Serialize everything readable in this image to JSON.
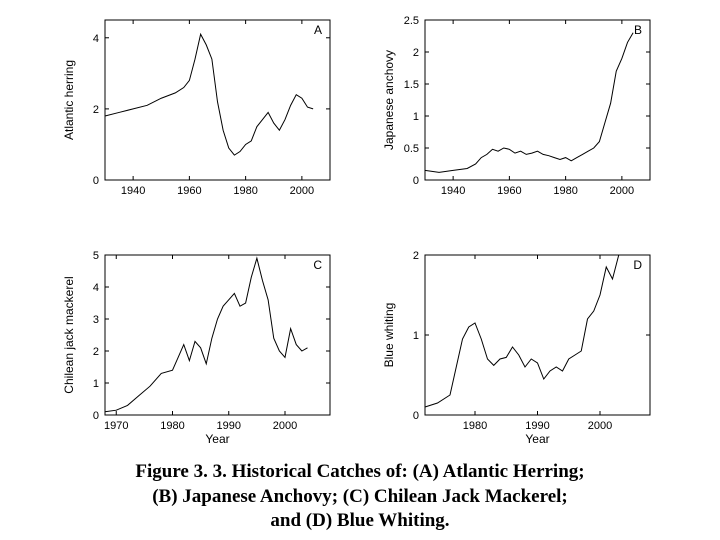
{
  "caption": {
    "line1": "Figure 3. 3. Historical Catches of:  (A) Atlantic Herring;",
    "line2": "(B) Japanese Anchovy; (C) Chilean Jack Mackerel;",
    "line3": "and (D) Blue Whiting."
  },
  "panels": {
    "A": {
      "type": "line",
      "letter": "A",
      "ylabel": "Atlantic herring",
      "xlabel": "",
      "xlim": [
        1930,
        2010
      ],
      "ylim": [
        0,
        4.5
      ],
      "xtick_labels": [
        "1940",
        "1960",
        "1980",
        "2000"
      ],
      "xtick_vals": [
        1940,
        1960,
        1980,
        2000
      ],
      "ytick_labels": [
        "0",
        "2",
        "4"
      ],
      "ytick_vals": [
        0,
        2,
        4
      ],
      "line_color": "#000000",
      "line_width": 1,
      "background_color": "#ffffff",
      "axis_color": "#000000",
      "data": [
        [
          1930,
          1.8
        ],
        [
          1935,
          1.9
        ],
        [
          1940,
          2.0
        ],
        [
          1945,
          2.1
        ],
        [
          1950,
          2.3
        ],
        [
          1955,
          2.45
        ],
        [
          1958,
          2.6
        ],
        [
          1960,
          2.8
        ],
        [
          1962,
          3.4
        ],
        [
          1964,
          4.1
        ],
        [
          1966,
          3.8
        ],
        [
          1968,
          3.4
        ],
        [
          1970,
          2.2
        ],
        [
          1972,
          1.4
        ],
        [
          1974,
          0.9
        ],
        [
          1976,
          0.7
        ],
        [
          1978,
          0.8
        ],
        [
          1980,
          1.0
        ],
        [
          1982,
          1.1
        ],
        [
          1984,
          1.5
        ],
        [
          1986,
          1.7
        ],
        [
          1988,
          1.9
        ],
        [
          1990,
          1.6
        ],
        [
          1992,
          1.4
        ],
        [
          1994,
          1.7
        ],
        [
          1996,
          2.1
        ],
        [
          1998,
          2.4
        ],
        [
          2000,
          2.3
        ],
        [
          2002,
          2.05
        ],
        [
          2004,
          2.0
        ]
      ]
    },
    "B": {
      "type": "line",
      "letter": "B",
      "ylabel": "Japanese anchovy",
      "xlabel": "",
      "xlim": [
        1930,
        2010
      ],
      "ylim": [
        0,
        2.5
      ],
      "xtick_labels": [
        "1940",
        "1960",
        "1980",
        "2000"
      ],
      "xtick_vals": [
        1940,
        1960,
        1980,
        2000
      ],
      "ytick_labels": [
        "0",
        "0.5",
        "1",
        "1.5",
        "2",
        "2.5"
      ],
      "ytick_vals": [
        0,
        0.5,
        1,
        1.5,
        2,
        2.5
      ],
      "line_color": "#000000",
      "line_width": 1,
      "background_color": "#ffffff",
      "axis_color": "#000000",
      "data": [
        [
          1930,
          0.15
        ],
        [
          1935,
          0.12
        ],
        [
          1940,
          0.15
        ],
        [
          1945,
          0.18
        ],
        [
          1948,
          0.25
        ],
        [
          1950,
          0.35
        ],
        [
          1952,
          0.4
        ],
        [
          1954,
          0.48
        ],
        [
          1956,
          0.45
        ],
        [
          1958,
          0.5
        ],
        [
          1960,
          0.48
        ],
        [
          1962,
          0.42
        ],
        [
          1964,
          0.45
        ],
        [
          1966,
          0.4
        ],
        [
          1968,
          0.42
        ],
        [
          1970,
          0.45
        ],
        [
          1972,
          0.4
        ],
        [
          1974,
          0.38
        ],
        [
          1976,
          0.35
        ],
        [
          1978,
          0.32
        ],
        [
          1980,
          0.35
        ],
        [
          1982,
          0.3
        ],
        [
          1984,
          0.35
        ],
        [
          1986,
          0.4
        ],
        [
          1988,
          0.45
        ],
        [
          1990,
          0.5
        ],
        [
          1992,
          0.6
        ],
        [
          1994,
          0.9
        ],
        [
          1996,
          1.2
        ],
        [
          1998,
          1.7
        ],
        [
          2000,
          1.9
        ],
        [
          2002,
          2.15
        ],
        [
          2004,
          2.3
        ]
      ]
    },
    "C": {
      "type": "line",
      "letter": "C",
      "ylabel": "Chilean jack mackerel",
      "xlabel": "Year",
      "xlim": [
        1968,
        2008
      ],
      "ylim": [
        0,
        5
      ],
      "xtick_labels": [
        "1970",
        "1980",
        "1990",
        "2000"
      ],
      "xtick_vals": [
        1970,
        1980,
        1990,
        2000
      ],
      "ytick_labels": [
        "0",
        "1",
        "2",
        "3",
        "4",
        "5"
      ],
      "ytick_vals": [
        0,
        1,
        2,
        3,
        4,
        5
      ],
      "line_color": "#000000",
      "line_width": 1,
      "background_color": "#ffffff",
      "axis_color": "#000000",
      "data": [
        [
          1968,
          0.1
        ],
        [
          1970,
          0.15
        ],
        [
          1972,
          0.3
        ],
        [
          1974,
          0.6
        ],
        [
          1976,
          0.9
        ],
        [
          1978,
          1.3
        ],
        [
          1980,
          1.4
        ],
        [
          1981,
          1.8
        ],
        [
          1982,
          2.2
        ],
        [
          1983,
          1.7
        ],
        [
          1984,
          2.3
        ],
        [
          1985,
          2.1
        ],
        [
          1986,
          1.6
        ],
        [
          1987,
          2.4
        ],
        [
          1988,
          3.0
        ],
        [
          1989,
          3.4
        ],
        [
          1990,
          3.6
        ],
        [
          1991,
          3.8
        ],
        [
          1992,
          3.4
        ],
        [
          1993,
          3.5
        ],
        [
          1994,
          4.3
        ],
        [
          1995,
          4.9
        ],
        [
          1996,
          4.2
        ],
        [
          1997,
          3.6
        ],
        [
          1998,
          2.4
        ],
        [
          1999,
          2.0
        ],
        [
          2000,
          1.8
        ],
        [
          2001,
          2.7
        ],
        [
          2002,
          2.2
        ],
        [
          2003,
          2.0
        ],
        [
          2004,
          2.1
        ]
      ]
    },
    "D": {
      "type": "line",
      "letter": "D",
      "ylabel": "Blue whiting",
      "xlabel": "Year",
      "xlim": [
        1972,
        2008
      ],
      "ylim": [
        0,
        2
      ],
      "xtick_labels": [
        "1980",
        "1990",
        "2000"
      ],
      "xtick_vals": [
        1980,
        1990,
        2000
      ],
      "ytick_labels": [
        "0",
        "1",
        "2"
      ],
      "ytick_vals": [
        0,
        1,
        2
      ],
      "line_color": "#000000",
      "line_width": 1,
      "background_color": "#ffffff",
      "axis_color": "#000000",
      "data": [
        [
          1972,
          0.1
        ],
        [
          1974,
          0.15
        ],
        [
          1976,
          0.25
        ],
        [
          1977,
          0.6
        ],
        [
          1978,
          0.95
        ],
        [
          1979,
          1.1
        ],
        [
          1980,
          1.15
        ],
        [
          1981,
          0.95
        ],
        [
          1982,
          0.7
        ],
        [
          1983,
          0.62
        ],
        [
          1984,
          0.7
        ],
        [
          1985,
          0.72
        ],
        [
          1986,
          0.85
        ],
        [
          1987,
          0.75
        ],
        [
          1988,
          0.6
        ],
        [
          1989,
          0.7
        ],
        [
          1990,
          0.65
        ],
        [
          1991,
          0.45
        ],
        [
          1992,
          0.55
        ],
        [
          1993,
          0.6
        ],
        [
          1994,
          0.55
        ],
        [
          1995,
          0.7
        ],
        [
          1996,
          0.75
        ],
        [
          1997,
          0.8
        ],
        [
          1998,
          1.2
        ],
        [
          1999,
          1.3
        ],
        [
          2000,
          1.5
        ],
        [
          2001,
          1.85
        ],
        [
          2002,
          1.7
        ],
        [
          2003,
          2.0
        ],
        [
          2004,
          2.0
        ]
      ]
    }
  }
}
